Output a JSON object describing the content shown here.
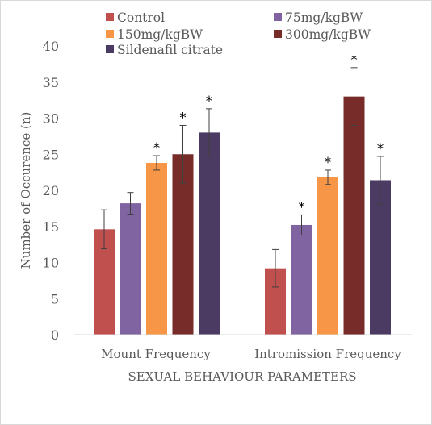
{
  "chart_data": {
    "type": "bar",
    "categories": [
      "Mount Frequency",
      "Intromission Frequency"
    ],
    "xlabel": "SEXUAL BEHAVIOUR PARAMETERS",
    "ylabel": "Number of Occurence (n)",
    "ylim": [
      0,
      40
    ],
    "yticks": [
      0,
      5,
      10,
      15,
      20,
      25,
      30,
      35,
      40
    ],
    "grid": false,
    "legend_position": "top",
    "significance_marker": "*",
    "series": [
      {
        "name": "Control",
        "color": "#c0504d",
        "values": [
          14.6,
          9.2
        ],
        "errors": [
          2.7,
          2.6
        ],
        "significant": [
          false,
          false
        ]
      },
      {
        "name": "75mg/kgBW",
        "color": "#8064a2",
        "values": [
          18.2,
          15.2
        ],
        "errors": [
          1.5,
          1.4
        ],
        "significant": [
          false,
          true
        ]
      },
      {
        "name": "150mg/kgBW",
        "color": "#f79646",
        "values": [
          23.8,
          21.8
        ],
        "errors": [
          1.0,
          1.0
        ],
        "significant": [
          true,
          true
        ]
      },
      {
        "name": "300mg/kgBW",
        "color": "#772c2a",
        "values": [
          25.0,
          33.0
        ],
        "errors": [
          4.0,
          4.0
        ],
        "significant": [
          true,
          true
        ]
      },
      {
        "name": "Sildenafil citrate",
        "color": "#4b3a62",
        "values": [
          28.0,
          21.4
        ],
        "errors": [
          3.3,
          3.3
        ],
        "significant": [
          true,
          true
        ]
      }
    ]
  }
}
